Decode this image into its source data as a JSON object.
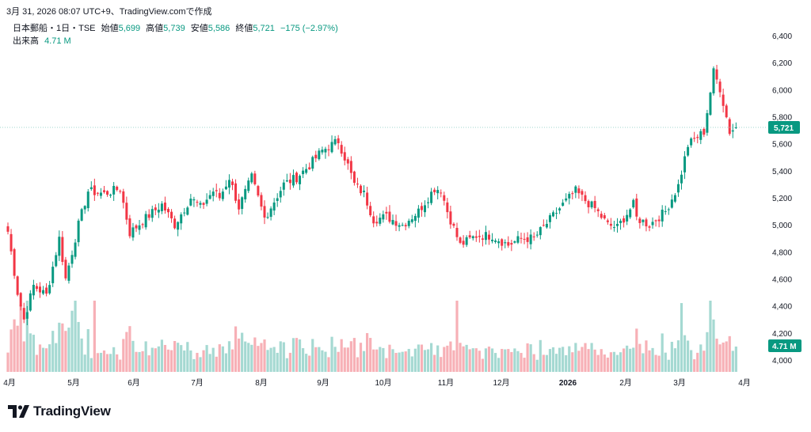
{
  "header": {
    "timestamp": "3月 31, 2026 08:07 UTC+9、TradingView.comで作成"
  },
  "legend": {
    "symbol": "日本郵船・1日・TSE",
    "open_label": "始値",
    "open": "5,699",
    "high_label": "高値",
    "high": "5,739",
    "low_label": "安値",
    "low": "5,586",
    "close_label": "終値",
    "close": "5,721",
    "change": "−175 (−2.97%)",
    "volume_label": "出来高",
    "volume": "4.71 M"
  },
  "brand": {
    "name": "TradingView",
    "icon": "tradingview-logo-icon"
  },
  "colors": {
    "up": "#089981",
    "down": "#f23645",
    "up_vol": "#a5d9d2",
    "down_vol": "#f7b0b6",
    "price_line": "#9fd6ce"
  },
  "chart_data": {
    "type": "candlestick",
    "price_ticks": [
      "6,400",
      "6,200",
      "6,000",
      "5,800",
      "5,600",
      "5,400",
      "5,200",
      "5,000",
      "4,800",
      "4,600",
      "4,400",
      "4,200",
      "4,000"
    ],
    "price_range": [
      3980,
      6470
    ],
    "month_labels": [
      "4月",
      "5月",
      "6月",
      "7月",
      "8月",
      "9月",
      "10月",
      "11月",
      "12月",
      "2026",
      "2月",
      "3月",
      "4月"
    ],
    "last_price_badge": "5,721",
    "last_volume_badge": "4.71 M",
    "last_price": 5721,
    "waypoints": [
      [
        0,
        4950
      ],
      [
        3,
        4500
      ],
      [
        5,
        4300
      ],
      [
        8,
        4550
      ],
      [
        12,
        4480
      ],
      [
        16,
        4900
      ],
      [
        18,
        4600
      ],
      [
        22,
        5000
      ],
      [
        25,
        5250
      ],
      [
        30,
        5230
      ],
      [
        35,
        5270
      ],
      [
        38,
        4940
      ],
      [
        43,
        5050
      ],
      [
        48,
        5150
      ],
      [
        52,
        5000
      ],
      [
        57,
        5200
      ],
      [
        60,
        5130
      ],
      [
        64,
        5250
      ],
      [
        66,
        5200
      ],
      [
        69,
        5350
      ],
      [
        72,
        5130
      ],
      [
        76,
        5350
      ],
      [
        80,
        5050
      ],
      [
        86,
        5300
      ],
      [
        90,
        5350
      ],
      [
        94,
        5440
      ],
      [
        98,
        5550
      ],
      [
        103,
        5620
      ],
      [
        106,
        5440
      ],
      [
        108,
        5300
      ],
      [
        111,
        5230
      ],
      [
        114,
        5040
      ],
      [
        118,
        5060
      ],
      [
        123,
        5000
      ],
      [
        128,
        5100
      ],
      [
        133,
        5270
      ],
      [
        135,
        5260
      ],
      [
        137,
        5100
      ],
      [
        141,
        4850
      ],
      [
        146,
        4920
      ],
      [
        151,
        4920
      ],
      [
        156,
        4850
      ],
      [
        160,
        4900
      ],
      [
        164,
        4900
      ],
      [
        168,
        5010
      ],
      [
        173,
        5150
      ],
      [
        177,
        5250
      ],
      [
        179,
        5200
      ],
      [
        183,
        5120
      ],
      [
        187,
        5000
      ],
      [
        190,
        4980
      ],
      [
        195,
        5150
      ],
      [
        196,
        5050
      ],
      [
        200,
        5000
      ],
      [
        205,
        5100
      ],
      [
        209,
        5290
      ],
      [
        212,
        5590
      ],
      [
        217,
        5690
      ],
      [
        220,
        6130
      ],
      [
        222,
        6010
      ],
      [
        225,
        5690
      ],
      [
        227,
        5721
      ]
    ],
    "volume_scale_max": 4.71
  }
}
